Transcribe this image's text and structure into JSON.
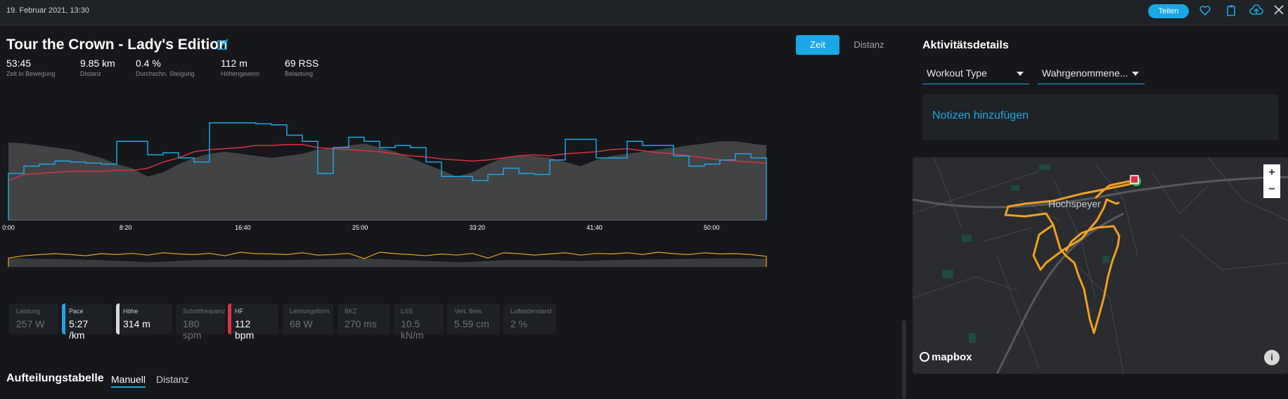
{
  "header": {
    "date": "19. Februar 2021, 13:30",
    "share_label": "Teilen",
    "icons": [
      "heart-icon",
      "clipboard-icon",
      "cloud-upload-icon",
      "close-icon"
    ]
  },
  "activity": {
    "title": "Tour the Crown - Lady's Edition",
    "view_toggle": {
      "time_label": "Zeit",
      "distance_label": "Distanz",
      "selected": "Zeit"
    },
    "stats": [
      {
        "value": "53:45",
        "label": "Zeit in Bewegung"
      },
      {
        "value": "9.85 km",
        "label": "Distanz"
      },
      {
        "value": "0.4 %",
        "label": "Durchschn. Steigung"
      },
      {
        "value": "112 m",
        "label": "Höhengewinn"
      },
      {
        "value": "69 RSS",
        "label": "Belastung"
      }
    ]
  },
  "chart_data": {
    "type": "line",
    "x_ticks": [
      "0:00",
      "8:20",
      "16:40",
      "25:00",
      "33:20",
      "41:40",
      "50:00"
    ],
    "series": [
      {
        "name": "Pace",
        "color": "#1ba7e6",
        "values": [
          55,
          48,
          46,
          43,
          44,
          45,
          46,
          24,
          24,
          37,
          35,
          40,
          44,
          6,
          6,
          6,
          7,
          8,
          18,
          24,
          55,
          30,
          20,
          24,
          30,
          28,
          30,
          44,
          58,
          58,
          62,
          56,
          50,
          55,
          56,
          42,
          22,
          22,
          40,
          40,
          24,
          28,
          28,
          38,
          48,
          46,
          42,
          36,
          40,
          40
        ]
      },
      {
        "name": "HF",
        "color": "#e03043",
        "values": [
          62,
          56,
          55,
          54,
          53,
          53,
          53,
          52,
          52,
          50,
          44,
          40,
          34,
          32,
          31,
          30,
          28,
          28,
          27,
          27,
          30,
          31,
          32,
          33,
          34,
          36,
          38,
          39,
          41,
          42,
          43,
          42,
          40,
          38,
          37,
          38,
          36,
          35,
          34,
          32,
          31,
          33,
          35,
          36,
          38,
          40,
          42,
          43,
          44,
          45
        ]
      },
      {
        "name": "Höhe",
        "color": "#4a4b4d",
        "values": [
          25,
          26,
          28,
          30,
          32,
          36,
          40,
          46,
          50,
          58,
          54,
          46,
          40,
          36,
          34,
          36,
          38,
          40,
          38,
          36,
          32,
          30,
          28,
          26,
          30,
          34,
          40,
          46,
          52,
          58,
          54,
          46,
          40,
          38,
          38,
          40,
          44,
          48,
          42,
          38,
          36,
          34,
          32,
          30,
          28,
          26,
          24,
          24,
          26,
          28
        ]
      },
      {
        "name": "Leistung",
        "color": "#f0a020",
        "values": [
          70,
          62,
          58,
          55,
          58,
          62,
          55,
          58,
          54,
          60,
          52,
          56,
          58,
          54,
          62,
          50,
          55,
          56,
          58,
          52,
          60,
          58,
          54,
          72,
          50,
          55,
          58,
          62,
          56,
          60,
          54,
          70,
          52,
          55,
          60,
          56,
          52,
          60,
          54,
          56,
          52,
          58,
          50,
          55,
          58,
          52,
          56,
          55,
          58,
          64
        ]
      }
    ]
  },
  "metrics": [
    {
      "label": "Leistung",
      "value": "257 W",
      "active": false,
      "color": ""
    },
    {
      "label": "Pace",
      "value": "5:27 /km",
      "active": true,
      "color": "#1ba7e6"
    },
    {
      "label": "Höhe",
      "value": "314 m",
      "active": true,
      "color": "#d9d9d9"
    },
    {
      "label": "Schrittfrequenz",
      "value": "180 spm",
      "active": false,
      "color": ""
    },
    {
      "label": "HF",
      "value": "112 bpm",
      "active": true,
      "color": "#e03043"
    },
    {
      "label": "Leistungsform",
      "value": "68 W",
      "active": false,
      "color": ""
    },
    {
      "label": "BKZ",
      "value": "270 ms",
      "active": false,
      "color": ""
    },
    {
      "label": "LSS",
      "value": "10.5 kN/m",
      "active": false,
      "color": ""
    },
    {
      "label": "Vert. Bew.",
      "value": "5.59 cm",
      "active": false,
      "color": ""
    },
    {
      "label": "Luftwiderstand",
      "value": "2 %",
      "active": false,
      "color": ""
    }
  ],
  "splits": {
    "title": "Aufteilungstabelle",
    "tabs": [
      "Manuell",
      "Distanz"
    ],
    "selected": "Manuell"
  },
  "details": {
    "title": "Aktivitätsdetails",
    "workout_type": "Workout Type",
    "perceived": "Wahrgenommene...",
    "notes_label": "Notizen hinzufügen"
  },
  "map": {
    "town": "Hochspeyer",
    "zoom_in": "+",
    "zoom_out": "−",
    "attribution": "mapbox",
    "info": "i",
    "route_color": "#f0a020"
  }
}
